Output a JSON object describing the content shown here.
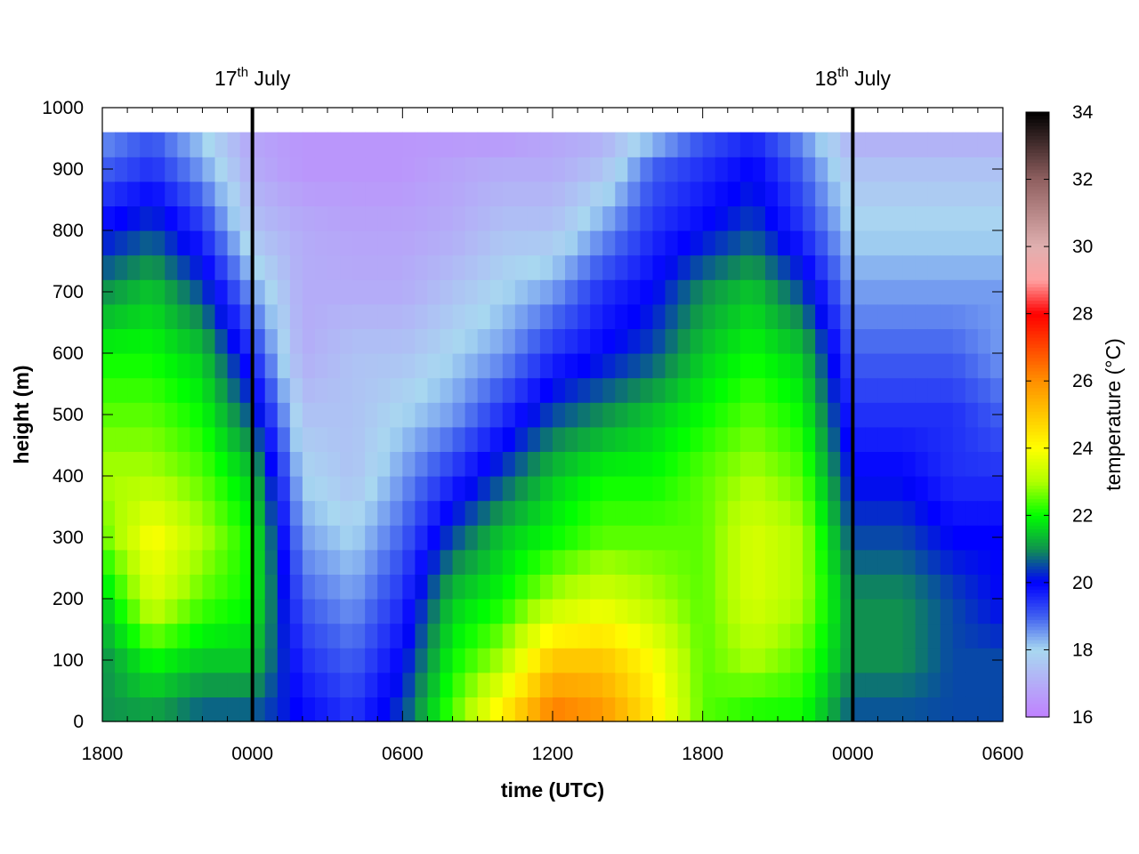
{
  "chart_data": {
    "type": "heatmap",
    "xlabel": "time (UTC)",
    "ylabel": "height (m)",
    "colorbar_label": "temperature (°C)",
    "x_range_hours": [
      0,
      36
    ],
    "x_ticks": [
      {
        "hour": 0,
        "label": "1800"
      },
      {
        "hour": 6,
        "label": "0000"
      },
      {
        "hour": 12,
        "label": "0600"
      },
      {
        "hour": 18,
        "label": "1200"
      },
      {
        "hour": 24,
        "label": "1800"
      },
      {
        "hour": 30,
        "label": "0000"
      },
      {
        "hour": 36,
        "label": "0600"
      }
    ],
    "ylim": [
      0,
      1000
    ],
    "y_ticks": [
      0,
      100,
      200,
      300,
      400,
      500,
      600,
      700,
      800,
      900,
      1000
    ],
    "colorbar_range": [
      16,
      34
    ],
    "colorbar_ticks": [
      16,
      18,
      20,
      22,
      24,
      26,
      28,
      30,
      32,
      34
    ],
    "colorbar_stops": [
      {
        "value": 16,
        "color": "#c080ff"
      },
      {
        "value": 18,
        "color": "#a8d8f0"
      },
      {
        "value": 19,
        "color": "#4060f0"
      },
      {
        "value": 20,
        "color": "#0000ff"
      },
      {
        "value": 21,
        "color": "#109050"
      },
      {
        "value": 22,
        "color": "#00ff00"
      },
      {
        "value": 23,
        "color": "#b0ff00"
      },
      {
        "value": 24,
        "color": "#ffff00"
      },
      {
        "value": 26,
        "color": "#ff9000"
      },
      {
        "value": 28,
        "color": "#ff0000"
      },
      {
        "value": 29,
        "color": "#ffa0a0"
      },
      {
        "value": 30,
        "color": "#e0b0b0"
      },
      {
        "value": 32,
        "color": "#906060"
      },
      {
        "value": 34,
        "color": "#000000"
      }
    ],
    "data_top_height": 960,
    "height_levels": [
      0,
      100,
      200,
      300,
      400,
      500,
      600,
      700,
      800,
      900,
      960
    ],
    "time_hours": [
      0,
      2,
      4,
      6,
      8,
      10,
      12,
      14,
      16,
      18,
      20,
      22,
      24,
      26,
      28,
      30,
      32,
      34,
      36
    ],
    "temperature_columns": [
      [
        21.0,
        21.0,
        21.5,
        22.5,
        23.0,
        22.5,
        22.0,
        21.0,
        20.0,
        19.0,
        18.5
      ],
      [
        21.0,
        22.0,
        23.5,
        24.0,
        23.0,
        22.5,
        22.0,
        21.5,
        20.5,
        19.5,
        19.0
      ],
      [
        20.5,
        21.5,
        22.5,
        23.0,
        22.5,
        22.0,
        21.5,
        20.5,
        19.5,
        18.5,
        18.0
      ],
      [
        20.5,
        21.5,
        22.0,
        22.0,
        21.5,
        20.5,
        19.5,
        18.5,
        17.5,
        17.0,
        16.8
      ],
      [
        20.0,
        19.5,
        19.0,
        18.5,
        18.0,
        17.5,
        17.0,
        17.0,
        17.0,
        16.5,
        16.5
      ],
      [
        19.5,
        19.0,
        18.5,
        18.0,
        17.5,
        17.5,
        17.5,
        17.0,
        16.8,
        16.5,
        16.5
      ],
      [
        20.5,
        20.0,
        19.5,
        19.0,
        18.5,
        18.0,
        17.5,
        17.0,
        16.8,
        16.5,
        16.5
      ],
      [
        22.5,
        22.0,
        21.5,
        20.5,
        19.5,
        18.5,
        18.0,
        17.5,
        17.0,
        16.8,
        16.5
      ],
      [
        24.5,
        23.0,
        22.0,
        21.5,
        20.5,
        19.5,
        18.5,
        18.0,
        17.5,
        17.0,
        16.5
      ],
      [
        26.5,
        25.0,
        23.0,
        22.0,
        21.5,
        20.5,
        19.5,
        18.5,
        17.5,
        17.0,
        16.8
      ],
      [
        26.0,
        25.0,
        23.5,
        22.5,
        22.0,
        21.0,
        20.0,
        19.5,
        18.5,
        17.5,
        17.0
      ],
      [
        24.5,
        24.0,
        23.0,
        22.5,
        22.0,
        21.5,
        20.5,
        20.0,
        19.5,
        19.0,
        18.0
      ],
      [
        22.5,
        22.5,
        22.5,
        22.5,
        22.5,
        22.0,
        21.5,
        21.0,
        20.0,
        19.5,
        19.0
      ],
      [
        22.0,
        23.0,
        23.5,
        23.5,
        23.0,
        22.5,
        22.0,
        21.5,
        20.5,
        20.0,
        19.5
      ],
      [
        22.0,
        22.5,
        23.0,
        23.0,
        22.5,
        22.0,
        21.5,
        20.5,
        19.5,
        19.0,
        18.5
      ],
      [
        20.5,
        21.0,
        21.0,
        20.5,
        20.0,
        19.5,
        19.0,
        18.5,
        18.0,
        17.5,
        17.0
      ],
      [
        20.5,
        21.0,
        21.0,
        20.5,
        20.0,
        19.5,
        19.0,
        18.5,
        18.0,
        17.5,
        17.0
      ],
      [
        20.5,
        20.5,
        20.5,
        20.0,
        19.5,
        19.5,
        19.0,
        18.5,
        18.0,
        17.5,
        17.0
      ],
      [
        20.5,
        20.5,
        20.0,
        20.0,
        19.5,
        19.0,
        18.5,
        18.5,
        18.0,
        17.5,
        17.0
      ]
    ],
    "date_markers": [
      {
        "hour": 6,
        "day": "17",
        "suffix": "th",
        "month": "July"
      },
      {
        "hour": 30,
        "day": "18",
        "suffix": "th",
        "month": "July"
      }
    ]
  }
}
